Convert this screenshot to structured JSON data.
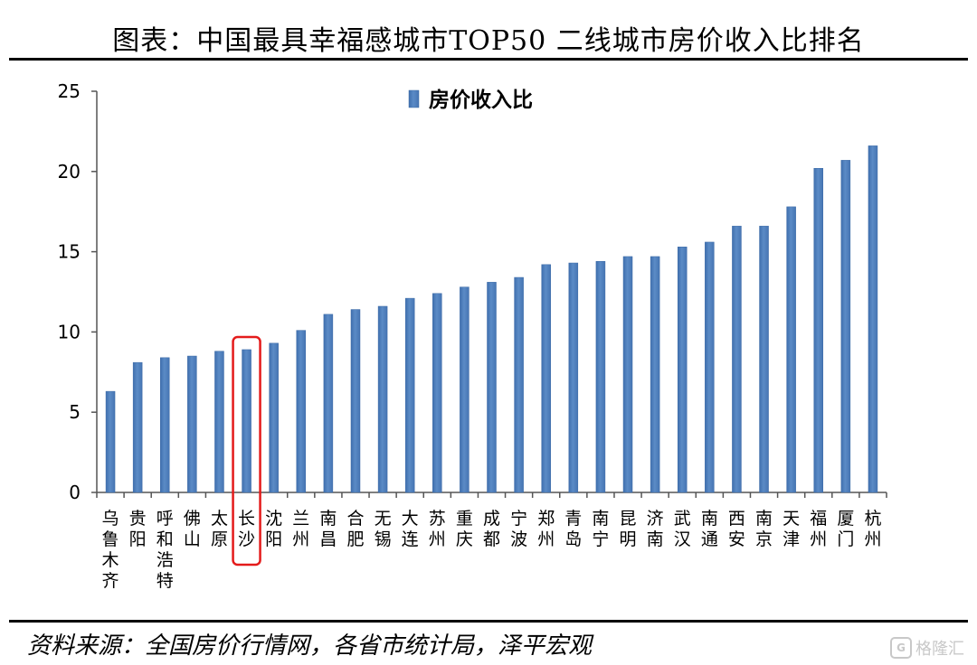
{
  "title": "图表：中国最具幸福感城市TOP50 二线城市房价收入比排名",
  "source": "资料来源：全国房价行情网，各省市统计局，泽平宏观",
  "watermark": "格隆汇",
  "colors": {
    "bar": "#5b8bc6",
    "bar_edge": "#3c6aa6",
    "highlight": "#e41b1b"
  },
  "highlight_category": "长沙",
  "chart_data": {
    "type": "bar",
    "categories": [
      "乌鲁木齐",
      "贵阳",
      "呼和浩特",
      "佛山",
      "太原",
      "长沙",
      "沈阳",
      "兰州",
      "南昌",
      "合肥",
      "无锡",
      "大连",
      "苏州",
      "重庆",
      "成都",
      "宁波",
      "郑州",
      "青岛",
      "南宁",
      "昆明",
      "济南",
      "武汉",
      "南通",
      "西安",
      "南京",
      "天津",
      "福州",
      "厦门",
      "杭州"
    ],
    "series": [
      {
        "name": "房价收入比",
        "values": [
          6.3,
          8.1,
          8.4,
          8.5,
          8.8,
          8.9,
          9.3,
          10.1,
          11.1,
          11.4,
          11.6,
          12.1,
          12.4,
          12.8,
          13.1,
          13.4,
          14.2,
          14.3,
          14.4,
          14.7,
          14.7,
          15.3,
          15.6,
          16.6,
          16.6,
          17.8,
          20.2,
          20.7,
          21.6
        ]
      }
    ],
    "ylim": [
      0,
      25
    ],
    "yticks": [
      0,
      5,
      10,
      15,
      20,
      25
    ],
    "legend": "top-center",
    "grid": false
  }
}
